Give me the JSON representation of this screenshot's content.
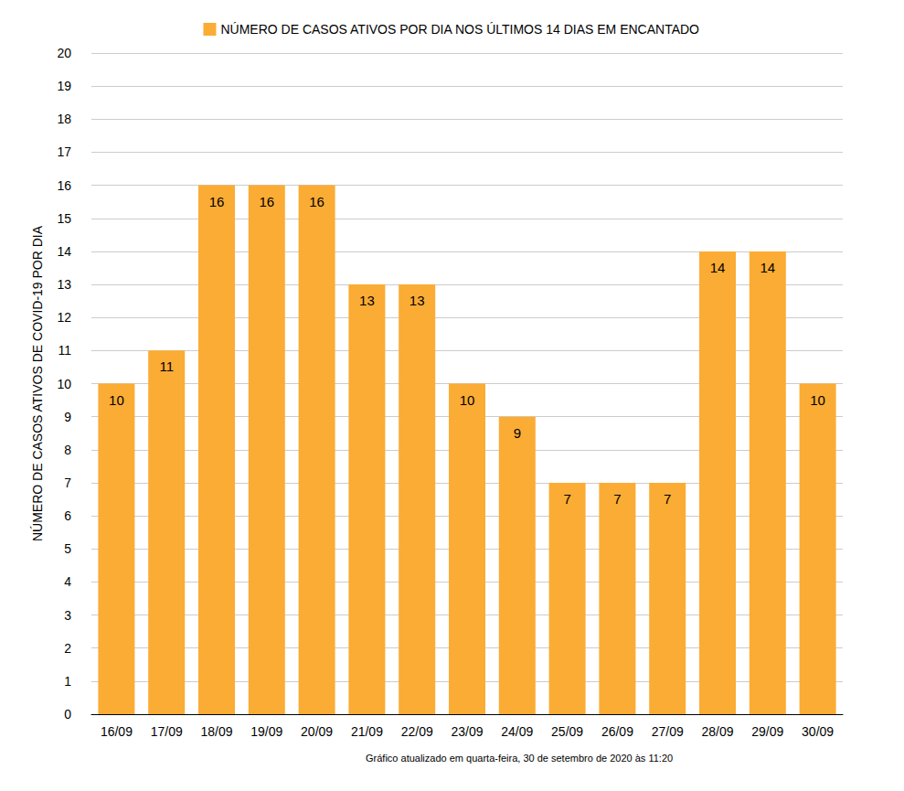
{
  "chart_data": {
    "type": "bar",
    "categories": [
      "16/09",
      "17/09",
      "18/09",
      "19/09",
      "20/09",
      "21/09",
      "22/09",
      "23/09",
      "24/09",
      "25/09",
      "26/09",
      "27/09",
      "28/09",
      "29/09",
      "30/09"
    ],
    "series": [
      {
        "name": "NÚMERO DE CASOS ATIVOS POR DIA NOS ÚLTIMOS 14 DIAS EM ENCANTADO",
        "color": "#fbac34",
        "values": [
          10,
          11,
          16,
          16,
          16,
          13,
          13,
          10,
          9,
          7,
          7,
          7,
          14,
          14,
          10
        ]
      }
    ],
    "ylabel": "NÚMERO DE CASOS ATIVOS DE COVID-19 POR DIA",
    "annotation": "Gráfico atualizado em quarta-feira, 30 de setembro de 2020 às 11:20",
    "ylim": [
      0,
      20
    ],
    "yticks": [
      0,
      1,
      2,
      3,
      4,
      5,
      6,
      7,
      8,
      9,
      10,
      11,
      12,
      13,
      14,
      15,
      16,
      17,
      18,
      19,
      20
    ],
    "grid": true,
    "legend": "top",
    "data_labels": true
  }
}
